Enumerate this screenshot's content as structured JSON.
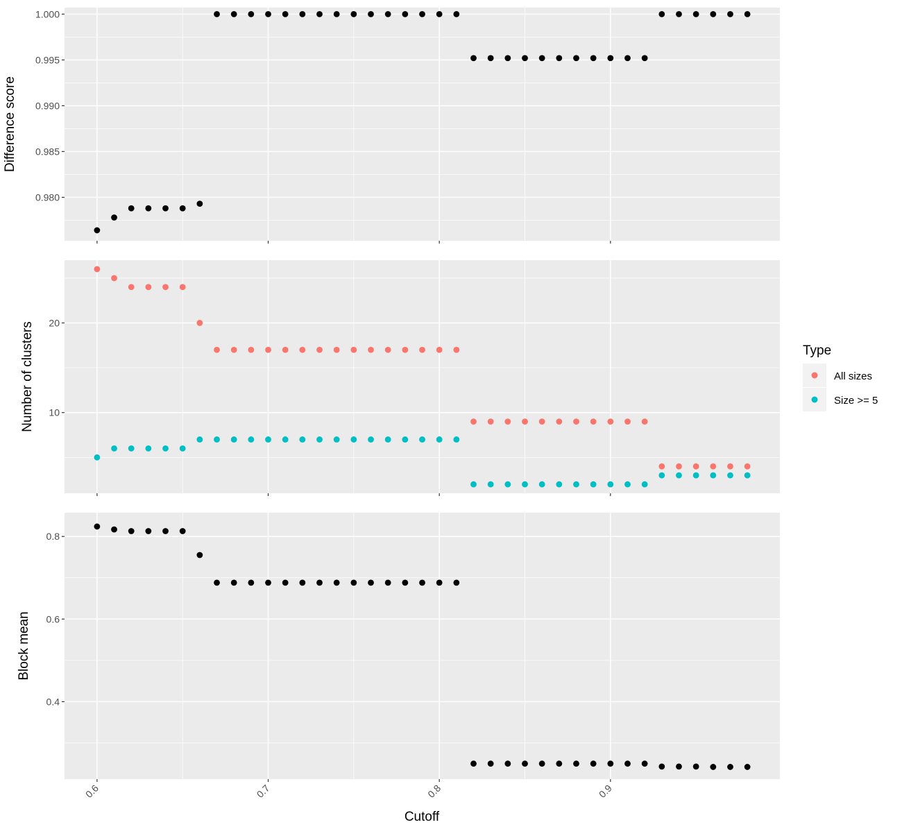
{
  "chart_data": {
    "type": "scatter",
    "xlabel": "Cutoff",
    "x_ticks": [
      0.6,
      0.7,
      0.8,
      0.9
    ],
    "x_tick_labels": [
      "0.6",
      "0.7",
      "0.8",
      "0.9"
    ],
    "xlim": [
      0.581,
      0.999
    ],
    "grid": true,
    "legend": {
      "title": "Type",
      "position": "right",
      "entries": [
        {
          "label": "All sizes",
          "color": "#f8766d"
        },
        {
          "label": "Size >= 5",
          "color": "#00bfc4"
        }
      ]
    },
    "panels": [
      {
        "ylabel": "Difference score",
        "ylim": [
          0.97526,
          1.00071
        ],
        "y_ticks": [
          0.98,
          0.985,
          0.99,
          0.995,
          1.0
        ],
        "y_tick_labels": [
          "0.980",
          "0.985",
          "0.990",
          "0.995",
          "1.000"
        ],
        "series": [
          {
            "color": "#000000",
            "x": [
              0.6,
              0.61,
              0.62,
              0.63,
              0.64,
              0.65,
              0.66,
              0.67,
              0.68,
              0.69,
              0.7,
              0.71,
              0.72,
              0.73,
              0.74,
              0.75,
              0.76,
              0.77,
              0.78,
              0.79,
              0.8,
              0.81,
              0.82,
              0.83,
              0.84,
              0.85,
              0.86,
              0.87,
              0.88,
              0.89,
              0.9,
              0.91,
              0.92,
              0.93,
              0.94,
              0.95,
              0.96,
              0.97,
              0.98
            ],
            "y": [
              0.9764,
              0.9778,
              0.9788,
              0.9788,
              0.9788,
              0.9788,
              0.9793,
              1.0,
              1.0,
              1.0,
              1.0,
              1.0,
              1.0,
              1.0,
              1.0,
              1.0,
              1.0,
              1.0,
              1.0,
              1.0,
              1.0,
              1.0,
              0.9952,
              0.9952,
              0.9952,
              0.9952,
              0.9952,
              0.9952,
              0.9952,
              0.9952,
              0.9952,
              0.9952,
              0.9952,
              1.0,
              1.0,
              1.0,
              1.0,
              1.0,
              1.0
            ]
          }
        ]
      },
      {
        "ylabel": "Number of clusters",
        "ylim": [
          1.0,
          27.0
        ],
        "y_ticks": [
          10,
          20
        ],
        "y_tick_labels": [
          "10",
          "20"
        ],
        "series": [
          {
            "name": "All sizes",
            "color": "#f8766d",
            "x": [
              0.6,
              0.61,
              0.62,
              0.63,
              0.64,
              0.65,
              0.66,
              0.67,
              0.68,
              0.69,
              0.7,
              0.71,
              0.72,
              0.73,
              0.74,
              0.75,
              0.76,
              0.77,
              0.78,
              0.79,
              0.8,
              0.81,
              0.82,
              0.83,
              0.84,
              0.85,
              0.86,
              0.87,
              0.88,
              0.89,
              0.9,
              0.91,
              0.92,
              0.93,
              0.94,
              0.95,
              0.96,
              0.97,
              0.98
            ],
            "y": [
              26,
              25,
              24,
              24,
              24,
              24,
              20,
              17,
              17,
              17,
              17,
              17,
              17,
              17,
              17,
              17,
              17,
              17,
              17,
              17,
              17,
              17,
              9,
              9,
              9,
              9,
              9,
              9,
              9,
              9,
              9,
              9,
              9,
              4,
              4,
              4,
              4,
              4,
              4
            ]
          },
          {
            "name": "Size >= 5",
            "color": "#00bfc4",
            "x": [
              0.6,
              0.61,
              0.62,
              0.63,
              0.64,
              0.65,
              0.66,
              0.67,
              0.68,
              0.69,
              0.7,
              0.71,
              0.72,
              0.73,
              0.74,
              0.75,
              0.76,
              0.77,
              0.78,
              0.79,
              0.8,
              0.81,
              0.82,
              0.83,
              0.84,
              0.85,
              0.86,
              0.87,
              0.88,
              0.89,
              0.9,
              0.91,
              0.92,
              0.93,
              0.94,
              0.95,
              0.96,
              0.97,
              0.98
            ],
            "y": [
              5,
              6,
              6,
              6,
              6,
              6,
              7,
              7,
              7,
              7,
              7,
              7,
              7,
              7,
              7,
              7,
              7,
              7,
              7,
              7,
              7,
              7,
              2,
              2,
              2,
              2,
              2,
              2,
              2,
              2,
              2,
              2,
              2,
              3,
              3,
              3,
              3,
              3,
              3
            ]
          }
        ]
      },
      {
        "ylabel": "Block mean",
        "ylim": [
          0.2125,
          0.8575
        ],
        "y_ticks": [
          0.4,
          0.6,
          0.8
        ],
        "y_tick_labels": [
          "0.4",
          "0.6",
          "0.8"
        ],
        "series": [
          {
            "color": "#000000",
            "x": [
              0.6,
              0.61,
              0.62,
              0.63,
              0.64,
              0.65,
              0.66,
              0.67,
              0.68,
              0.69,
              0.7,
              0.71,
              0.72,
              0.73,
              0.74,
              0.75,
              0.76,
              0.77,
              0.78,
              0.79,
              0.8,
              0.81,
              0.82,
              0.83,
              0.84,
              0.85,
              0.86,
              0.87,
              0.88,
              0.89,
              0.9,
              0.91,
              0.92,
              0.93,
              0.94,
              0.95,
              0.96,
              0.97,
              0.98
            ],
            "y": [
              0.824,
              0.817,
              0.813,
              0.813,
              0.813,
              0.813,
              0.755,
              0.688,
              0.688,
              0.688,
              0.688,
              0.688,
              0.688,
              0.688,
              0.688,
              0.688,
              0.688,
              0.688,
              0.688,
              0.688,
              0.688,
              0.688,
              0.25,
              0.25,
              0.25,
              0.25,
              0.25,
              0.25,
              0.25,
              0.25,
              0.25,
              0.25,
              0.25,
              0.243,
              0.243,
              0.243,
              0.242,
              0.242,
              0.242
            ]
          }
        ]
      }
    ]
  }
}
